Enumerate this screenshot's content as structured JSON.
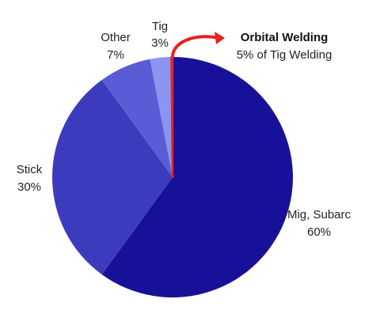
{
  "chart_data": {
    "type": "pie",
    "title": "",
    "slices": [
      {
        "label": "Mig, Subarc",
        "pct_label": "60%",
        "value": 60,
        "color": "#17119a"
      },
      {
        "label": "Stick",
        "pct_label": "30%",
        "value": 30,
        "color": "#3c3bbd"
      },
      {
        "label": "Other",
        "pct_label": "7%",
        "value": 7,
        "color": "#5a5cd6"
      },
      {
        "label": "Tig",
        "pct_label": "3%",
        "value": 3,
        "color": "#8c94f2"
      }
    ],
    "start": "12 o'clock",
    "direction": "clockwise",
    "annotation": {
      "title": "Orbital Welding",
      "subtitle": "5% of Tig Welding",
      "target": "Tig",
      "share_of_target": 5,
      "arrow_color": "#e8211a"
    }
  }
}
